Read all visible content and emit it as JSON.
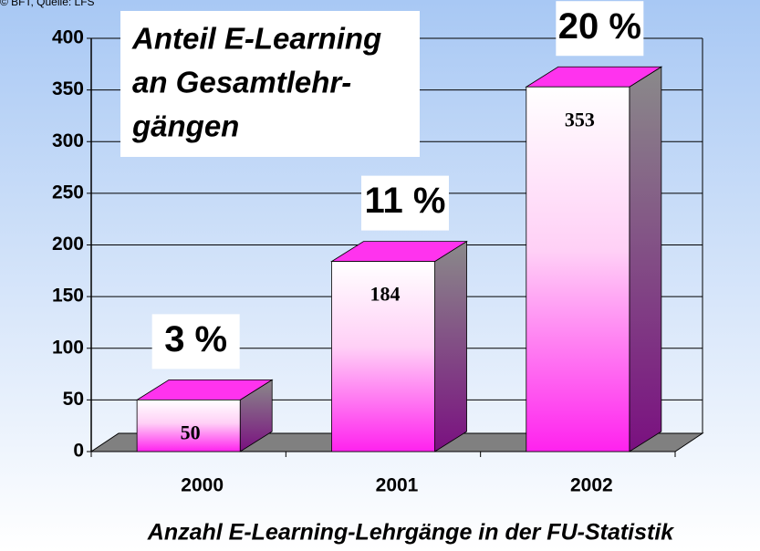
{
  "chart_data": {
    "type": "bar",
    "source": "© BFT, Quelle: LFS",
    "title_lines": [
      "Anteil E-Learning",
      "an Gesamtlehr-",
      "gängen"
    ],
    "caption": "Anzahl E-Learning-Lehrgänge in der FU-Statistik",
    "categories": [
      "2000",
      "2001",
      "2002"
    ],
    "values": [
      50,
      184,
      353
    ],
    "annotations": [
      "3 %",
      "11 %",
      "20 %"
    ],
    "color": "#ff33ee",
    "ylim": [
      0,
      400
    ],
    "yticks": [
      0,
      50,
      100,
      150,
      200,
      250,
      300,
      350,
      400
    ],
    "grid": true
  }
}
